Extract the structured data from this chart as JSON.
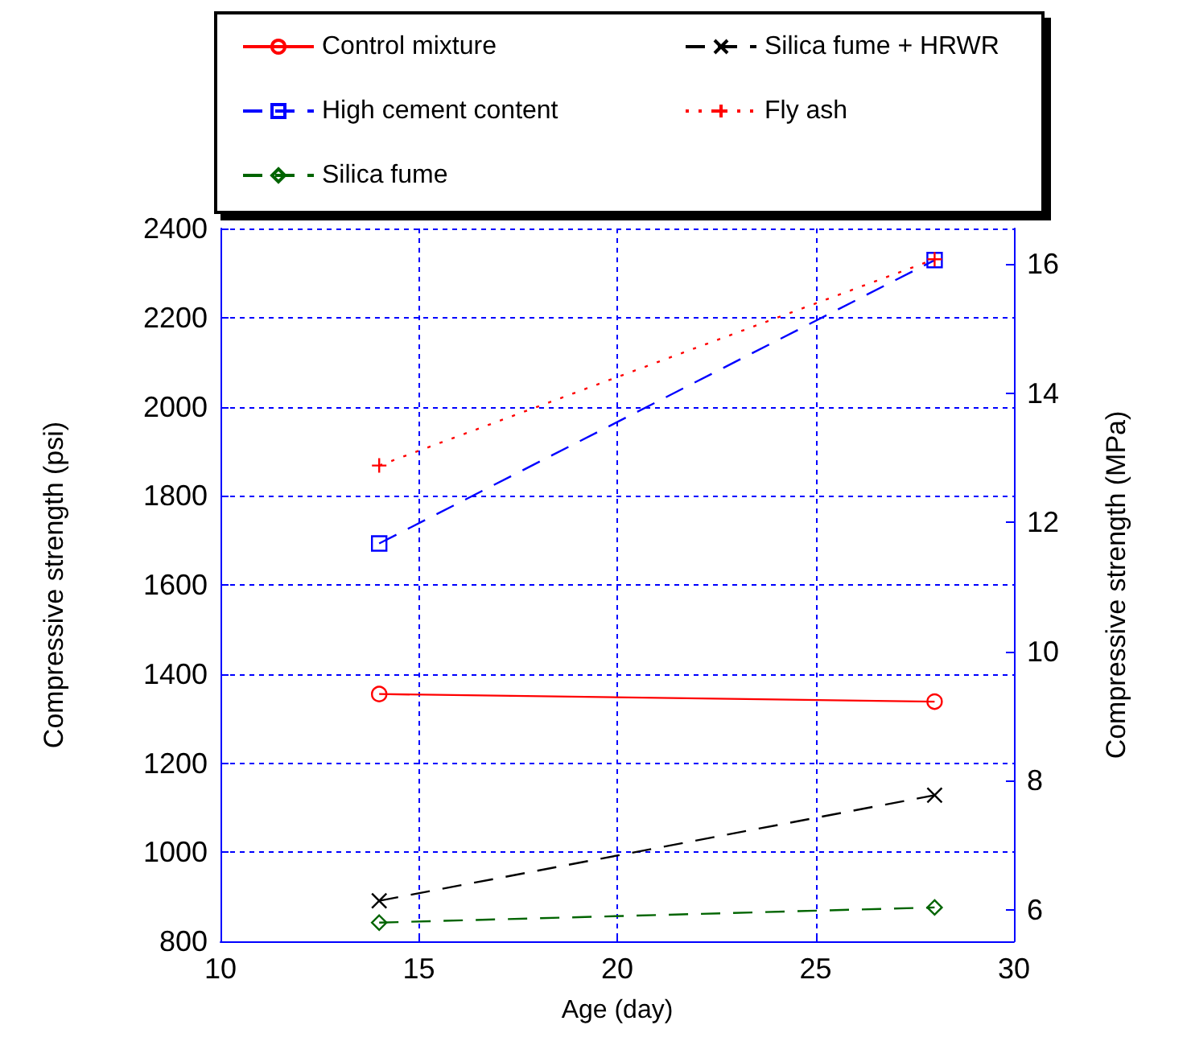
{
  "chart_data": {
    "type": "line",
    "xlabel": "Age (day)",
    "ylabel": "Compressive strength (psi)",
    "y2label": "Compressive strength (MPa)",
    "x": [
      14,
      28
    ],
    "xlim": [
      10,
      30
    ],
    "xticks": [
      10,
      15,
      20,
      25,
      30
    ],
    "ylim": [
      800,
      2400
    ],
    "yticks": [
      800,
      1000,
      1200,
      1400,
      1600,
      1800,
      2000,
      2200,
      2400
    ],
    "y2lim": [
      5.516,
      16.547
    ],
    "y2ticks": [
      6,
      8,
      10,
      12,
      14,
      16
    ],
    "grid": true,
    "legend": "top",
    "series": [
      {
        "name": "Control mixture",
        "color": "#ff0000",
        "values": [
          1355,
          1338
        ],
        "marker": "circle",
        "line_style": "solid"
      },
      {
        "name": "High cement content",
        "color": "#0000ff",
        "values": [
          1693,
          2329
        ],
        "marker": "square",
        "line_style": "dashed"
      },
      {
        "name": "Silica fume",
        "color": "#006400",
        "values": [
          842,
          876
        ],
        "marker": "diamond",
        "line_style": "dashed"
      },
      {
        "name": "Silica fume + HRWR",
        "color": "#000000",
        "values": [
          891,
          1128
        ],
        "marker": "cross",
        "line_style": "dashed"
      },
      {
        "name": "Fly ash",
        "color": "#ff0000",
        "values": [
          1868,
          2331
        ],
        "marker": "plus",
        "line_style": "dotted"
      }
    ]
  }
}
